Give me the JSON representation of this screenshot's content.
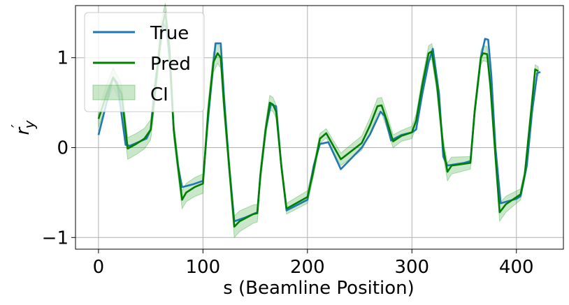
{
  "chart_data": {
    "type": "line",
    "title": "",
    "xlabel": "s (Beamline Position)",
    "ylabel_base": "r",
    "ylabel_prime": "′",
    "ylabel_sub": "y",
    "xlim": [
      -22,
      445
    ],
    "ylim": [
      -1.13,
      1.58
    ],
    "xticks": [
      0,
      100,
      200,
      300,
      400
    ],
    "xtick_labels": [
      "0",
      "100",
      "200",
      "300",
      "400"
    ],
    "yticks": [
      -1,
      0,
      1
    ],
    "ytick_labels": [
      "−1",
      "0",
      "1"
    ],
    "grid": true,
    "legend_position": "top-left",
    "series": [
      {
        "name": "True",
        "color": "#1f77b4",
        "points": [
          [
            0,
            0.14
          ],
          [
            10,
            0.6
          ],
          [
            14,
            0.78
          ],
          [
            18,
            0.72
          ],
          [
            26,
            0.03
          ],
          [
            30,
            0.02
          ],
          [
            46,
            0.1
          ],
          [
            50,
            0.2
          ],
          [
            54,
            0.7
          ],
          [
            62,
            1.38
          ],
          [
            65,
            1.33
          ],
          [
            68,
            1.0
          ],
          [
            72,
            0.2
          ],
          [
            76,
            -0.2
          ],
          [
            80,
            -0.44
          ],
          [
            90,
            -0.41
          ],
          [
            100,
            -0.37
          ],
          [
            104,
            0.2
          ],
          [
            108,
            0.7
          ],
          [
            112,
            1.16
          ],
          [
            117,
            1.16
          ],
          [
            120,
            0.6
          ],
          [
            125,
            -0.2
          ],
          [
            130,
            -0.82
          ],
          [
            140,
            -0.78
          ],
          [
            152,
            -0.72
          ],
          [
            155,
            -0.3
          ],
          [
            160,
            0.2
          ],
          [
            165,
            0.48
          ],
          [
            170,
            0.46
          ],
          [
            175,
            -0.2
          ],
          [
            180,
            -0.7
          ],
          [
            200,
            -0.58
          ],
          [
            206,
            -0.2
          ],
          [
            212,
            0.04
          ],
          [
            220,
            0.06
          ],
          [
            232,
            -0.24
          ],
          [
            252,
            0.0
          ],
          [
            260,
            0.15
          ],
          [
            270,
            0.4
          ],
          [
            274,
            0.35
          ],
          [
            280,
            0.08
          ],
          [
            290,
            0.14
          ],
          [
            300,
            0.17
          ],
          [
            304,
            0.2
          ],
          [
            310,
            0.6
          ],
          [
            316,
            0.95
          ],
          [
            320,
            1.1
          ],
          [
            326,
            0.6
          ],
          [
            330,
            -0.1
          ],
          [
            334,
            -0.2
          ],
          [
            350,
            -0.17
          ],
          [
            356,
            -0.15
          ],
          [
            360,
            0.4
          ],
          [
            366,
            1.0
          ],
          [
            370,
            1.21
          ],
          [
            373,
            1.2
          ],
          [
            376,
            0.8
          ],
          [
            380,
            0.0
          ],
          [
            385,
            -0.62
          ],
          [
            400,
            -0.57
          ],
          [
            404,
            -0.54
          ],
          [
            410,
            -0.2
          ],
          [
            415,
            0.4
          ],
          [
            420,
            0.83
          ],
          [
            423,
            0.84
          ]
        ]
      },
      {
        "name": "Pred",
        "color": "#008000",
        "points": [
          [
            0,
            0.32
          ],
          [
            8,
            0.6
          ],
          [
            14,
            0.78
          ],
          [
            22,
            0.6
          ],
          [
            28,
            -0.01
          ],
          [
            36,
            0.04
          ],
          [
            44,
            0.1
          ],
          [
            50,
            0.2
          ],
          [
            54,
            0.6
          ],
          [
            60,
            1.3
          ],
          [
            64,
            1.5
          ],
          [
            68,
            1.1
          ],
          [
            72,
            0.2
          ],
          [
            76,
            -0.2
          ],
          [
            80,
            -0.58
          ],
          [
            84,
            -0.5
          ],
          [
            92,
            -0.44
          ],
          [
            100,
            -0.4
          ],
          [
            105,
            0.4
          ],
          [
            110,
            0.95
          ],
          [
            114,
            1.05
          ],
          [
            117,
            1.0
          ],
          [
            120,
            0.5
          ],
          [
            125,
            -0.2
          ],
          [
            130,
            -0.88
          ],
          [
            135,
            -0.82
          ],
          [
            148,
            -0.74
          ],
          [
            152,
            -0.73
          ],
          [
            155,
            -0.3
          ],
          [
            160,
            0.2
          ],
          [
            164,
            0.5
          ],
          [
            167,
            0.48
          ],
          [
            170,
            0.4
          ],
          [
            175,
            -0.2
          ],
          [
            180,
            -0.68
          ],
          [
            200,
            -0.55
          ],
          [
            205,
            -0.3
          ],
          [
            212,
            0.1
          ],
          [
            218,
            0.16
          ],
          [
            232,
            -0.13
          ],
          [
            252,
            0.05
          ],
          [
            260,
            0.25
          ],
          [
            267,
            0.46
          ],
          [
            271,
            0.47
          ],
          [
            276,
            0.3
          ],
          [
            282,
            0.07
          ],
          [
            290,
            0.13
          ],
          [
            300,
            0.17
          ],
          [
            304,
            0.3
          ],
          [
            310,
            0.7
          ],
          [
            316,
            1.05
          ],
          [
            319,
            1.07
          ],
          [
            324,
            0.7
          ],
          [
            330,
            0.0
          ],
          [
            334,
            -0.27
          ],
          [
            338,
            -0.2
          ],
          [
            350,
            -0.18
          ],
          [
            356,
            -0.17
          ],
          [
            360,
            0.4
          ],
          [
            366,
            1.0
          ],
          [
            368,
            1.05
          ],
          [
            372,
            1.04
          ],
          [
            375,
            0.7
          ],
          [
            380,
            -0.1
          ],
          [
            384,
            -0.72
          ],
          [
            390,
            -0.63
          ],
          [
            404,
            -0.52
          ],
          [
            408,
            -0.3
          ],
          [
            414,
            0.4
          ],
          [
            418,
            0.87
          ],
          [
            421,
            0.85
          ]
        ]
      }
    ],
    "ci": {
      "name": "CI",
      "color": "#2ca02c",
      "halfwidth_default": 0.07,
      "halfwidth_wide": [
        [
          0,
          0.1
        ],
        [
          28,
          0.12
        ],
        [
          80,
          0.1
        ],
        [
          130,
          0.12
        ],
        [
          150,
          0.1
        ],
        [
          180,
          0.06
        ],
        [
          200,
          0.07
        ],
        [
          218,
          0.05
        ],
        [
          232,
          0.07
        ],
        [
          270,
          0.09
        ],
        [
          290,
          0.06
        ],
        [
          334,
          0.1
        ],
        [
          356,
          0.07
        ],
        [
          384,
          0.1
        ],
        [
          405,
          0.06
        ],
        [
          421,
          0.05
        ]
      ]
    }
  }
}
